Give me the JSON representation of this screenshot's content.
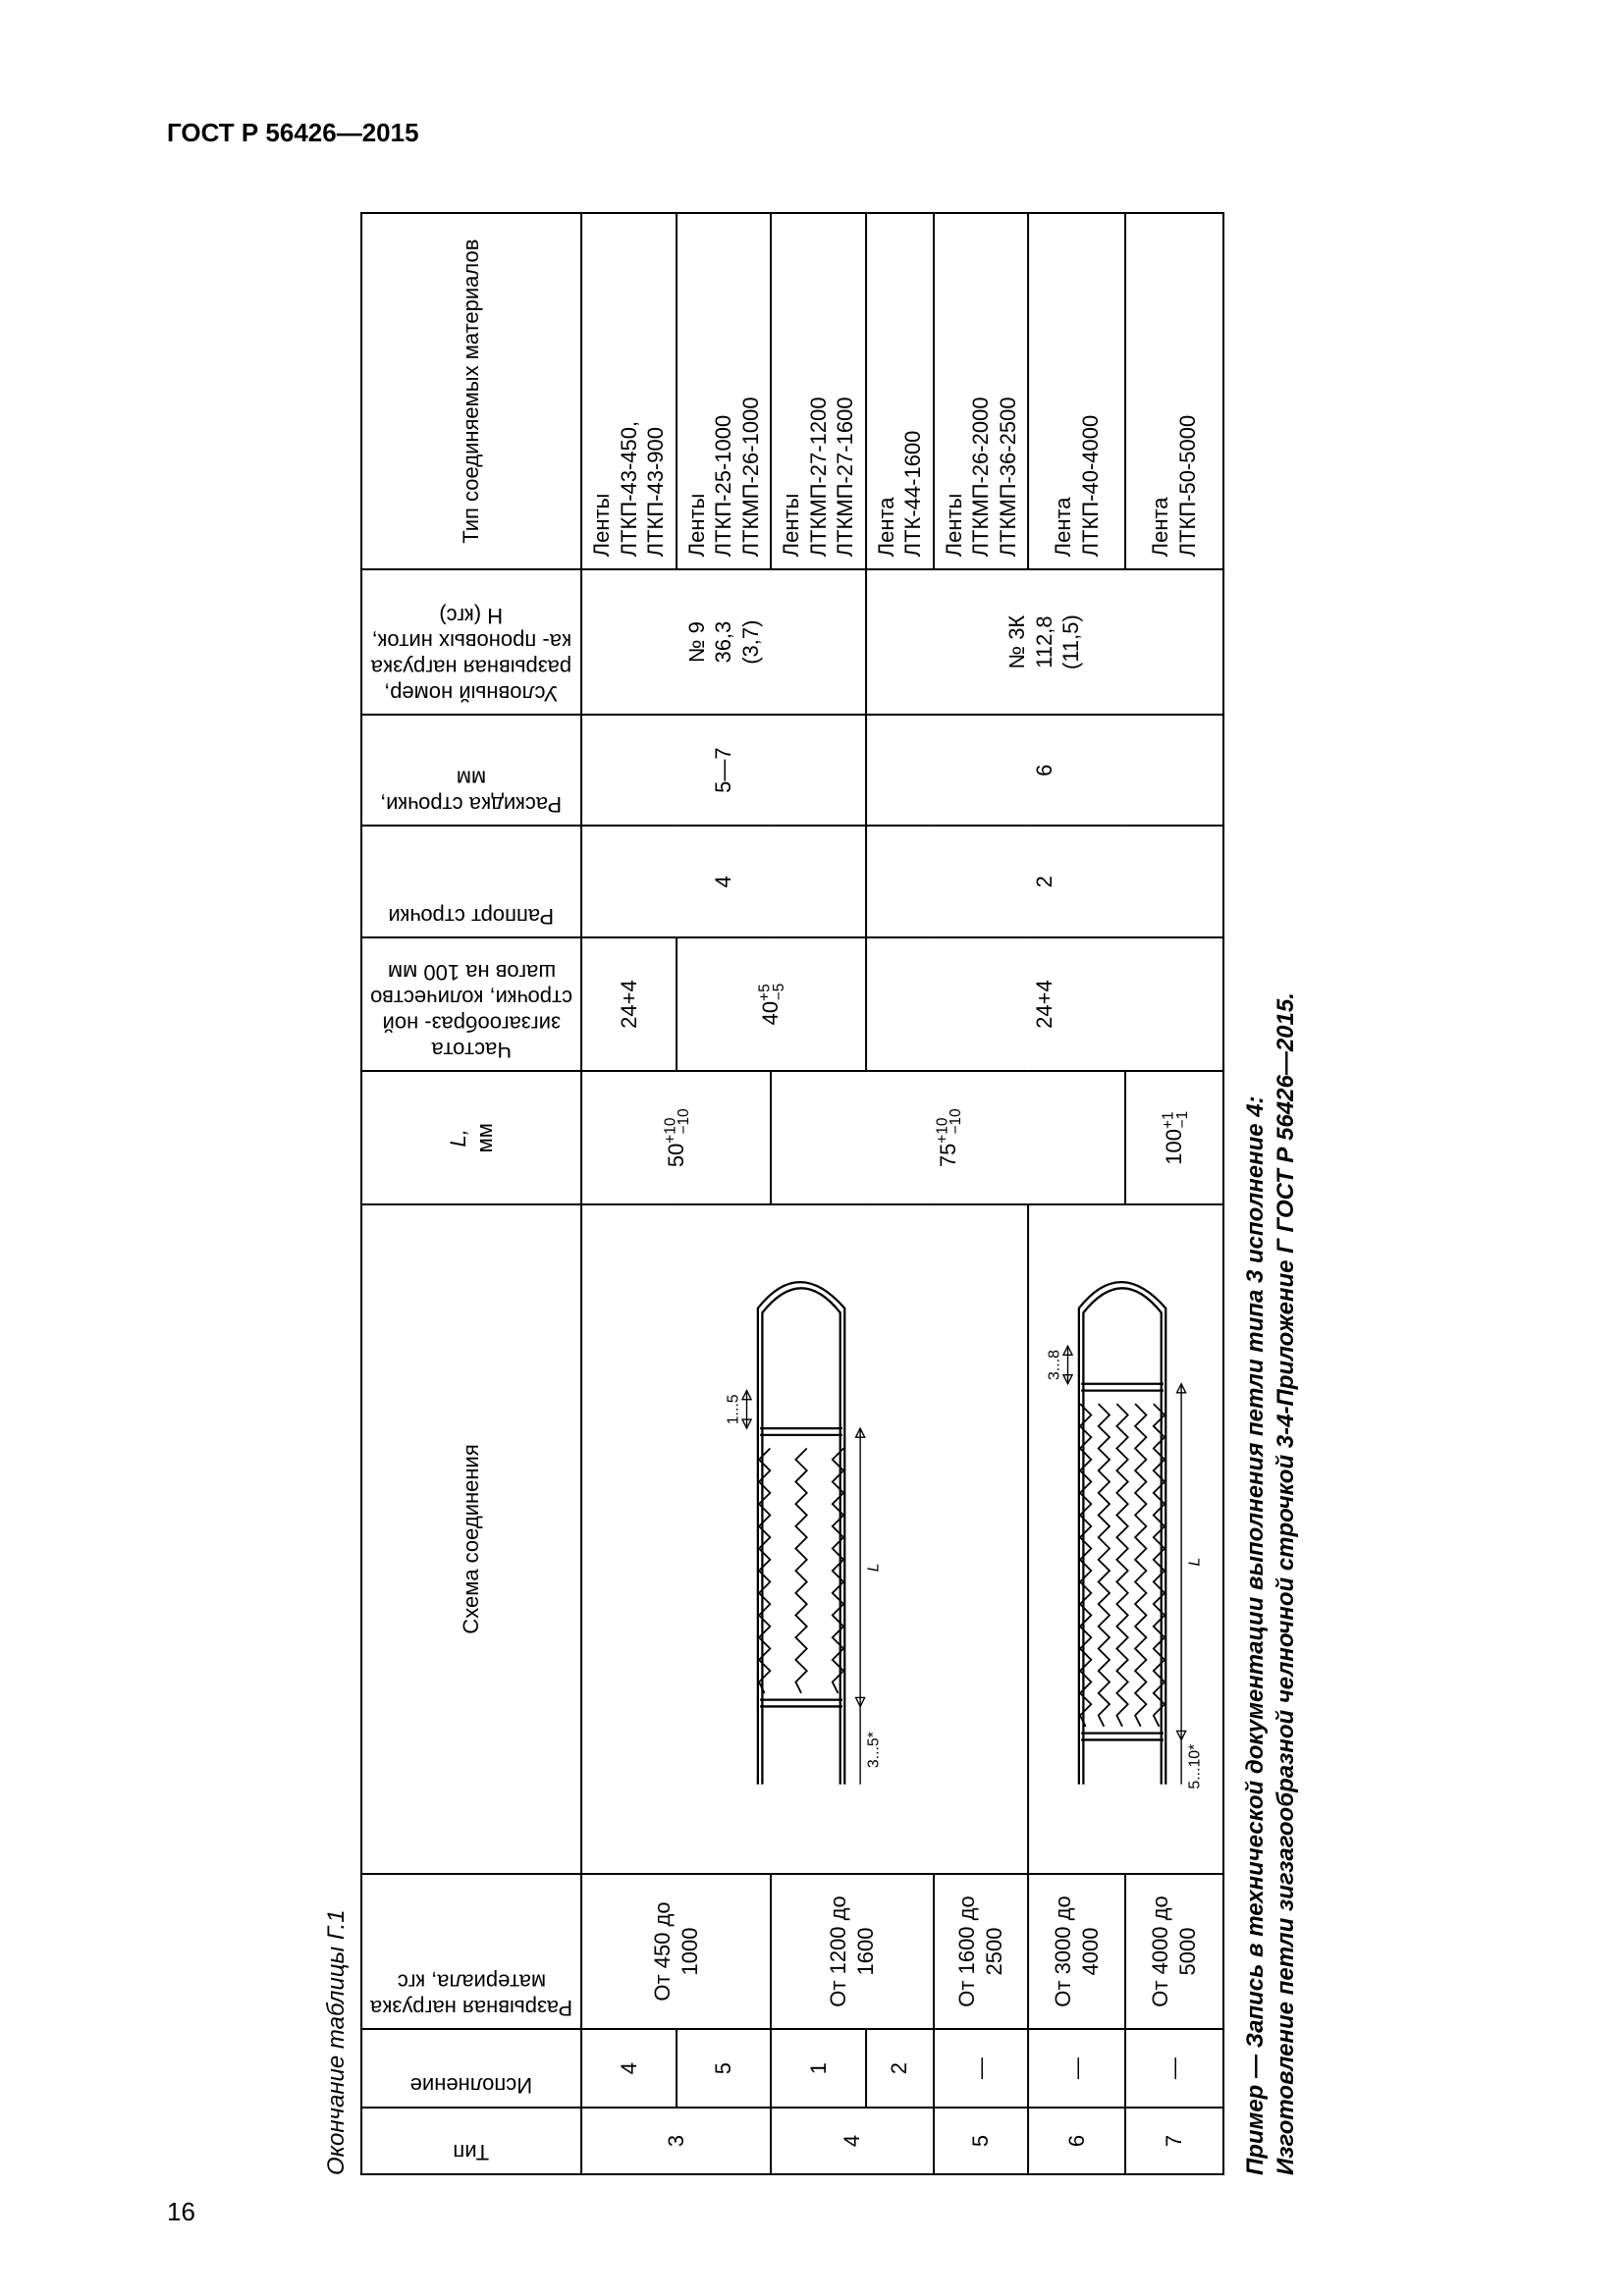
{
  "doc_header": "ГОСТ Р 56426—2015",
  "page_number": "16",
  "table_caption": "Окончание таблицы Г.1",
  "columns": {
    "tip": "Тип",
    "ispolnenie": "Исполнение",
    "load": "Разрывная нагрузка материала, кгс",
    "scheme": "Схема соединения",
    "L": "L,",
    "L_unit": "мм",
    "freq": "Частота зигзагообраз-\nной строчки, количество\nшагов на 100 мм",
    "rapport": "Раппорт строчки",
    "raskidka": "Раскидка строчки, мм",
    "thread": "Условный номер,\nразрывная нагрузка ка-\nпроновых ниток, Н (кгс)",
    "materials": "Тип соединяемых материалов"
  },
  "rows": [
    {
      "tip": "3",
      "tip_rowspan": 2,
      "isp": "4",
      "load": "От 450 до 1000",
      "diagram": 1,
      "diagram_rowspan": 5,
      "L": "50+10_−10",
      "L_rowspan": 2,
      "freq": "24+4",
      "freq_rowspan": 1,
      "rapport": "4",
      "rapport_rowspan": 3,
      "rask": "5—7",
      "rask_rowspan": 3,
      "thread": "№ 9\n36,3\n(3,7)",
      "thread_rowspan": 3,
      "mat": "Ленты\nЛТКП-43-450,\nЛТКП-43-900"
    },
    {
      "isp": "5",
      "load": "",
      "freq": "40+5_−5",
      "freq_rowspan": 2,
      "mat": "Ленты\nЛТКП-25-1000\nЛТКМП-26-1000"
    },
    {
      "tip": "4",
      "tip_rowspan": 2,
      "isp": "1",
      "load": "От 1200 до 1600",
      "load_rowspan": 2,
      "L": "75+10_−10",
      "L_rowspan": 4,
      "mat": "Ленты\nЛТКМП-27-1200\nЛТКМП-27-1600"
    },
    {
      "isp": "2",
      "freq": "24+4",
      "freq_rowspan": 4,
      "rapport": "2",
      "rapport_rowspan": 4,
      "rask": "6",
      "rask_rowspan": 4,
      "thread": "№ 3К\n112,8\n(11,5)",
      "thread_rowspan": 4,
      "mat": "Лента\nЛТК-44-1600"
    },
    {
      "tip": "5",
      "isp": "|",
      "load": "От 1600 до 2500",
      "mat": "Ленты\nЛТКМП-26-2000\nЛТКМП-36-2500"
    },
    {
      "tip": "6",
      "isp": "|",
      "load": "От 3000 до 4000",
      "diagram": 2,
      "diagram_rowspan": 2,
      "mat": "Лента\nЛТКП-40-4000"
    },
    {
      "tip": "7",
      "isp": "|",
      "load": "От 4000 до 5000",
      "L": "100+1_−1",
      "mat": "Лента\nЛТКП-50-5000"
    }
  ],
  "diagram1": {
    "gap_label": "1...5",
    "left_label": "3...5*",
    "L_label": "L"
  },
  "diagram2": {
    "gap_label": "3...8",
    "left_label": "5...10*",
    "L_label": "L"
  },
  "footnote": {
    "prefix": "Пример — Запись в технической документации выполнения петли типа 3 исполнение 4:",
    "line2": "Изготовление петли зигзагообразной челночной строчкой 3-4-Приложение Г ГОСТ Р 56426—2015."
  }
}
